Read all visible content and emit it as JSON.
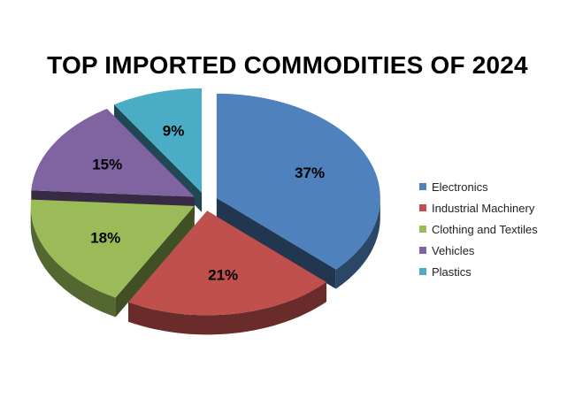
{
  "chart_data": {
    "type": "pie",
    "title": "TOP IMPORTED COMMODITIES OF 2024",
    "categories": [
      "Electronics",
      "Industrial Machinery",
      "Clothing and Textiles",
      "Vehicles",
      "Plastics"
    ],
    "values": [
      37,
      21,
      18,
      15,
      9
    ],
    "value_labels": [
      "37%",
      "21%",
      "18%",
      "15%",
      "9%"
    ],
    "unit": "%",
    "style": "3d-exploded",
    "legend_position": "right",
    "colors": {
      "Electronics": "#4F81BD",
      "Industrial Machinery": "#C0504D",
      "Clothing and Textiles": "#9BBB59",
      "Vehicles": "#8064A2",
      "Plastics": "#4BACC6"
    }
  }
}
